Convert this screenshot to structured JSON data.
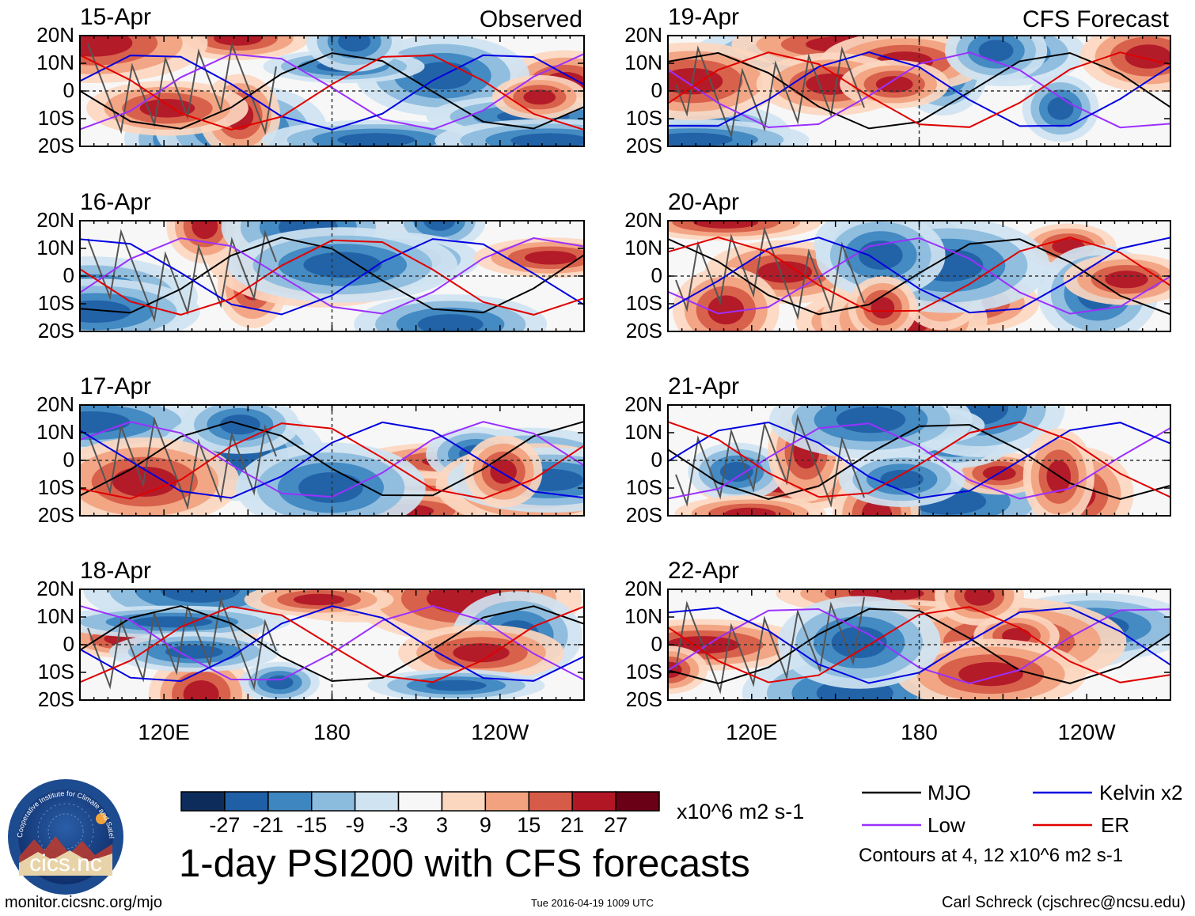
{
  "title": "1-day PSI200 with CFS forecasts",
  "labels": {
    "observed": "Observed",
    "forecast": "CFS Forecast"
  },
  "panels": [
    {
      "date": "15-Apr",
      "type": "observed"
    },
    {
      "date": "16-Apr",
      "type": "observed"
    },
    {
      "date": "17-Apr",
      "type": "observed"
    },
    {
      "date": "18-Apr",
      "type": "observed"
    },
    {
      "date": "19-Apr",
      "type": "forecast"
    },
    {
      "date": "20-Apr",
      "type": "forecast"
    },
    {
      "date": "21-Apr",
      "type": "forecast"
    },
    {
      "date": "22-Apr",
      "type": "forecast"
    }
  ],
  "axes": {
    "lat_ticks": [
      "20N",
      "10N",
      "0",
      "10S",
      "20S"
    ],
    "lon_ticks": [
      "120E",
      "180",
      "120W"
    ]
  },
  "colorbar": {
    "unit": "x10^6 m2 s-1",
    "labels": [
      "-27",
      "-21",
      "-15",
      "-9",
      "-3",
      "3",
      "9",
      "15",
      "21",
      "27"
    ],
    "colors": [
      "#0d2c5b",
      "#1f5fa6",
      "#3e86c0",
      "#8bbbdd",
      "#cfe3f1",
      "#f7f7f7",
      "#fcd7c0",
      "#f2a27f",
      "#d65b48",
      "#b11625",
      "#6a0015"
    ]
  },
  "legend": {
    "items": [
      {
        "name": "MJO",
        "color": "#000000"
      },
      {
        "name": "Low",
        "color": "#9b30ff"
      },
      {
        "name": "Kelvin x2",
        "color": "#0000e0"
      },
      {
        "name": "ER",
        "color": "#e00000"
      }
    ],
    "contour_note": "Contours at 4, 12 x10^6 m2 s-1"
  },
  "logo_text": "cics.nc",
  "logo_ring_text": "Cooperative Institute for Climate and Satellites",
  "footer": {
    "url": "monitor.cicsnc.org/mjo",
    "timestamp": "Tue 2016-04-19 1009 UTC",
    "credit": "Carl Schreck (cjschrec@ncsu.edu)"
  }
}
